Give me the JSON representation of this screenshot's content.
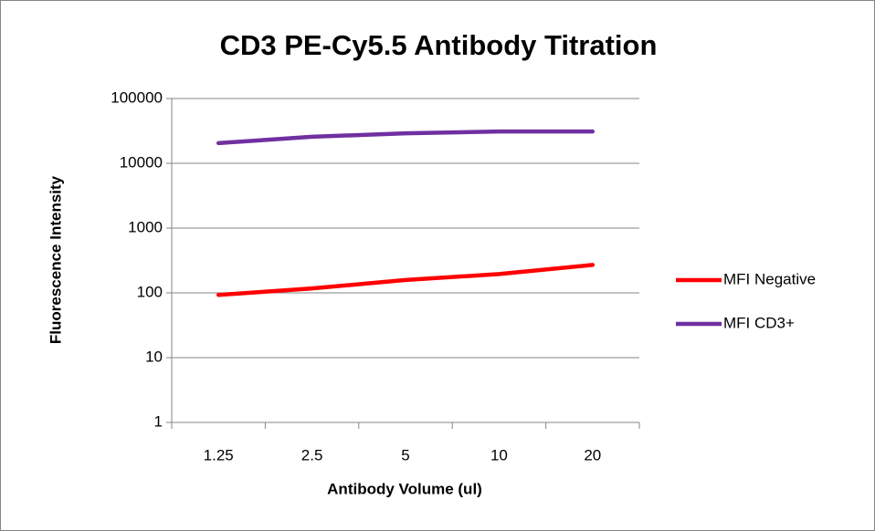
{
  "chart_data": {
    "type": "line",
    "title": "CD3 PE-Cy5.5 Antibody Titration",
    "x_label": "Antibody Volume (ul)",
    "y_label": "Fluorescence Intensity",
    "categories": [
      "1.25",
      "2.5",
      "5",
      "10",
      "20"
    ],
    "series": [
      {
        "name": "MFI Negative",
        "color": "#ff0000",
        "values": [
          93,
          117,
          158,
          195,
          270
        ]
      },
      {
        "name": "MFI CD3+",
        "color": "#7030a0",
        "values": [
          20500,
          25700,
          29000,
          31000,
          31000
        ]
      }
    ],
    "ylim": [
      1,
      100000
    ],
    "yticks": [
      1,
      10,
      100,
      1000,
      10000,
      100000
    ],
    "y_scale": "log",
    "grid": true,
    "legend": "right"
  }
}
